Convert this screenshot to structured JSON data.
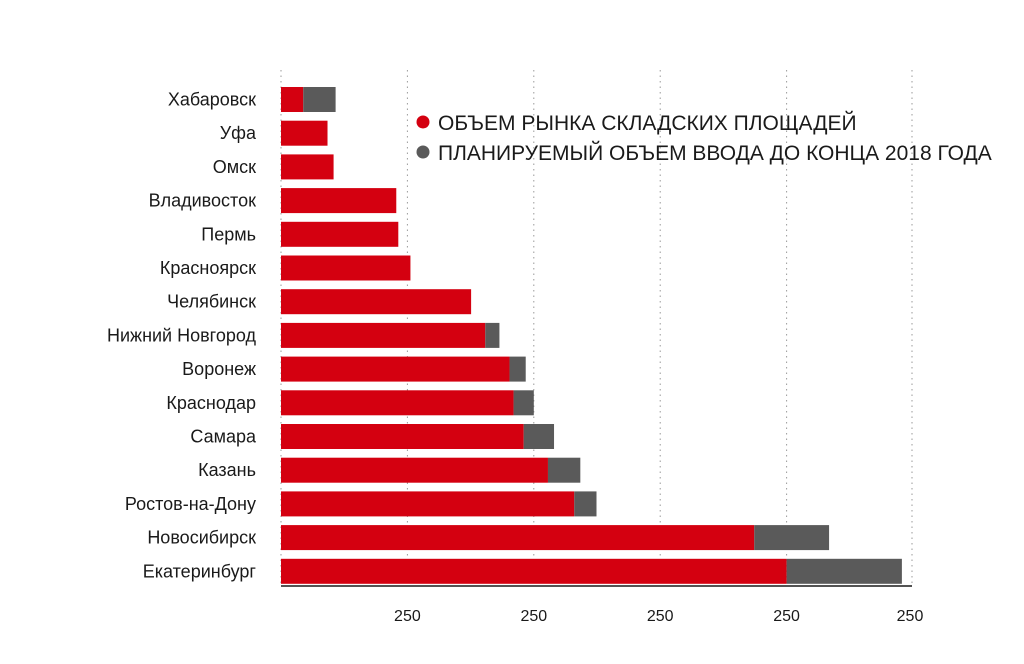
{
  "chart_data": {
    "type": "bar",
    "orientation": "horizontal",
    "stacked": true,
    "categories": [
      "Хабаровск",
      "Уфа",
      "Омск",
      "Владивосток",
      "Пермь",
      "Красноярск",
      "Челябинск",
      "Нижний Новгород",
      "Воронеж",
      "Краснодар",
      "Самара",
      "Казань",
      "Ростов-на-Дону",
      "Новосибирск",
      "Екатеринбург"
    ],
    "series": [
      {
        "name": "ОБЪЕМ РЫНКА СКЛАДСКИХ ПЛОЩАДЕЙ",
        "color": "#d40010",
        "values": [
          11,
          23,
          26,
          57,
          58,
          64,
          94,
          101,
          113,
          115,
          120,
          132,
          145,
          234,
          250
        ]
      },
      {
        "name": "ПЛАНИРУЕМЫЙ ОБЪЕМ ВВОДА ДО КОНЦА 2018 ГОДА",
        "color": "#5a5a5a",
        "values": [
          16,
          0,
          0,
          0,
          0,
          0,
          0,
          7,
          8,
          10,
          15,
          16,
          11,
          37,
          57
        ]
      }
    ],
    "xlim": [
      0,
      312
    ],
    "xticks": [
      62.5,
      125,
      187.5,
      250,
      312.5
    ],
    "xtick_labels": [
      "250",
      "250",
      "250",
      "250",
      "250"
    ],
    "grid": "vertical-dotted",
    "legend_position": "top-right"
  }
}
